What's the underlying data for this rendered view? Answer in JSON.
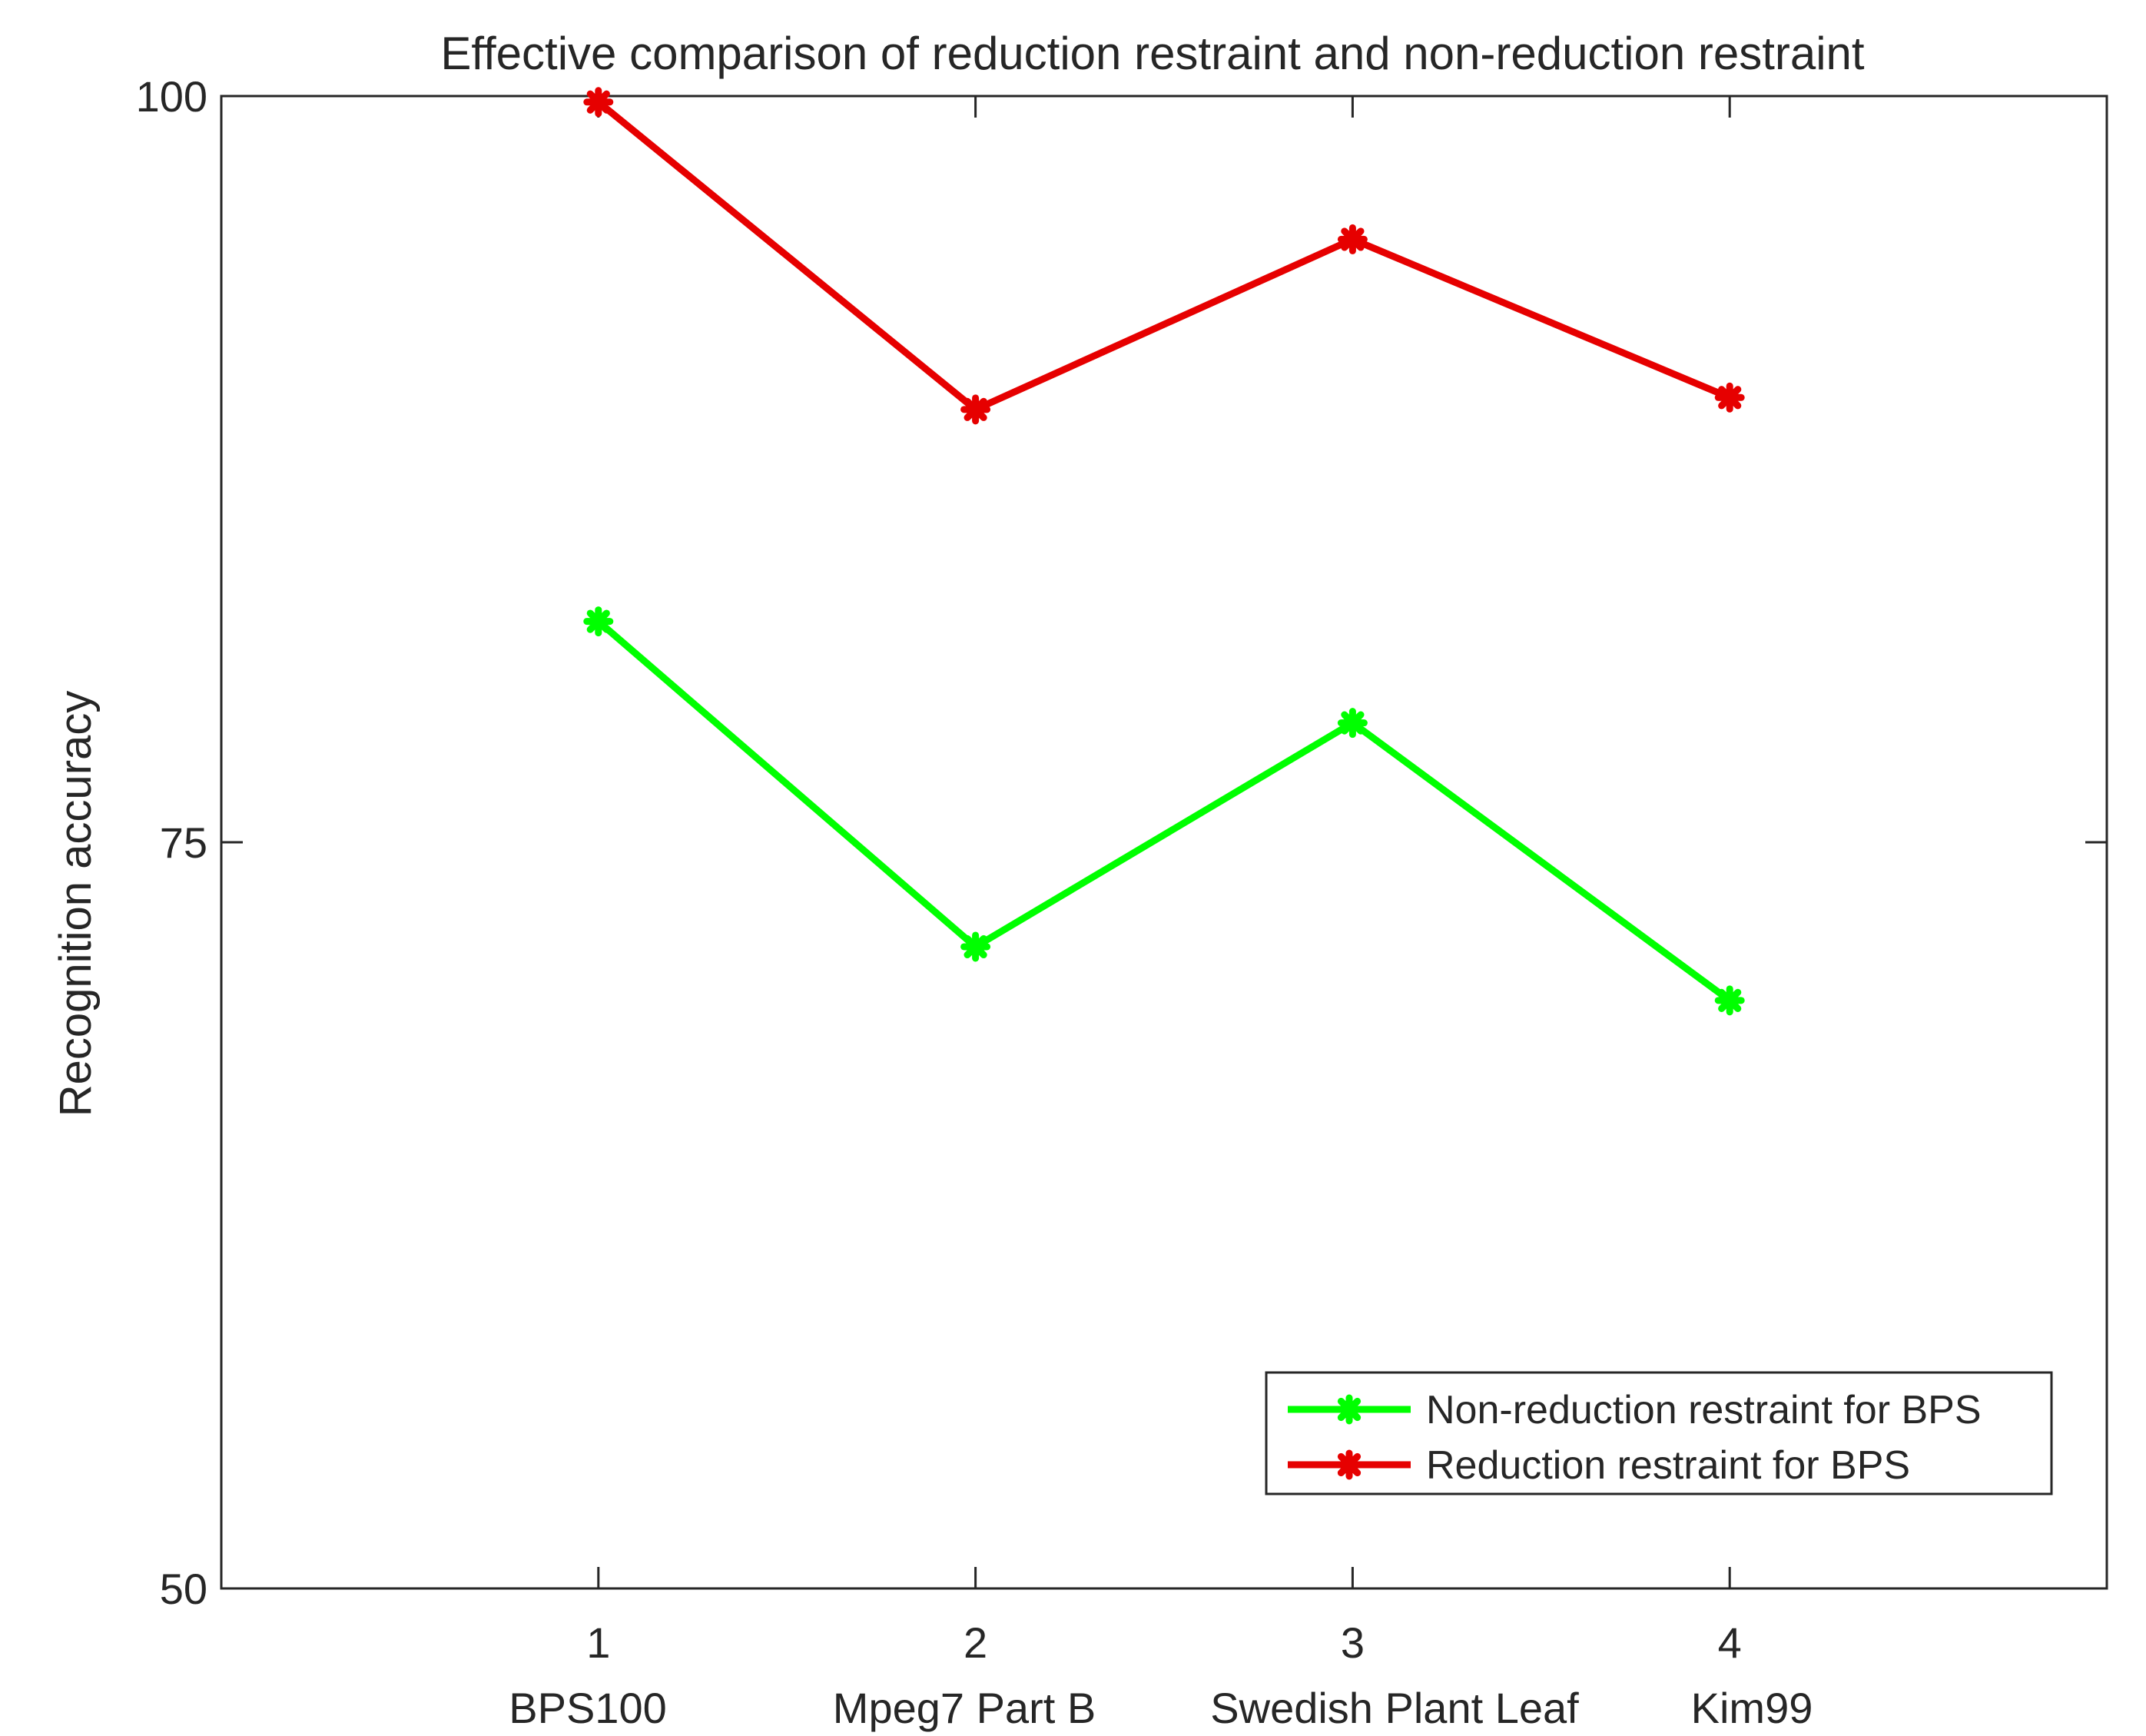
{
  "chart_data": {
    "type": "line",
    "title": "Effective comparison of reduction restraint and non-reduction restraint",
    "xlabel": "",
    "ylabel": "Recognition accuracy",
    "x": [
      1,
      2,
      3,
      4
    ],
    "x_tick_labels": [
      "1",
      "2",
      "3",
      "4"
    ],
    "categories": [
      "BPS100",
      "Mpeg7 Part B",
      "Swedish Plant Leaf",
      "Kim99"
    ],
    "xlim": [
      0,
      5
    ],
    "ylim": [
      50,
      100
    ],
    "y_ticks": [
      50,
      75,
      100
    ],
    "y_tick_labels": [
      "50",
      "75",
      "100"
    ],
    "grid": false,
    "legend_position": "bottom-right",
    "series": [
      {
        "name": "Non-reduction restraint for BPS",
        "color": "#00ff00",
        "marker": "asterisk",
        "values": [
          82.4,
          71.5,
          79.0,
          69.7
        ]
      },
      {
        "name": "Reduction restraint for BPS",
        "color": "#e60000",
        "marker": "asterisk",
        "values": [
          99.8,
          89.5,
          95.2,
          89.9
        ]
      }
    ]
  }
}
